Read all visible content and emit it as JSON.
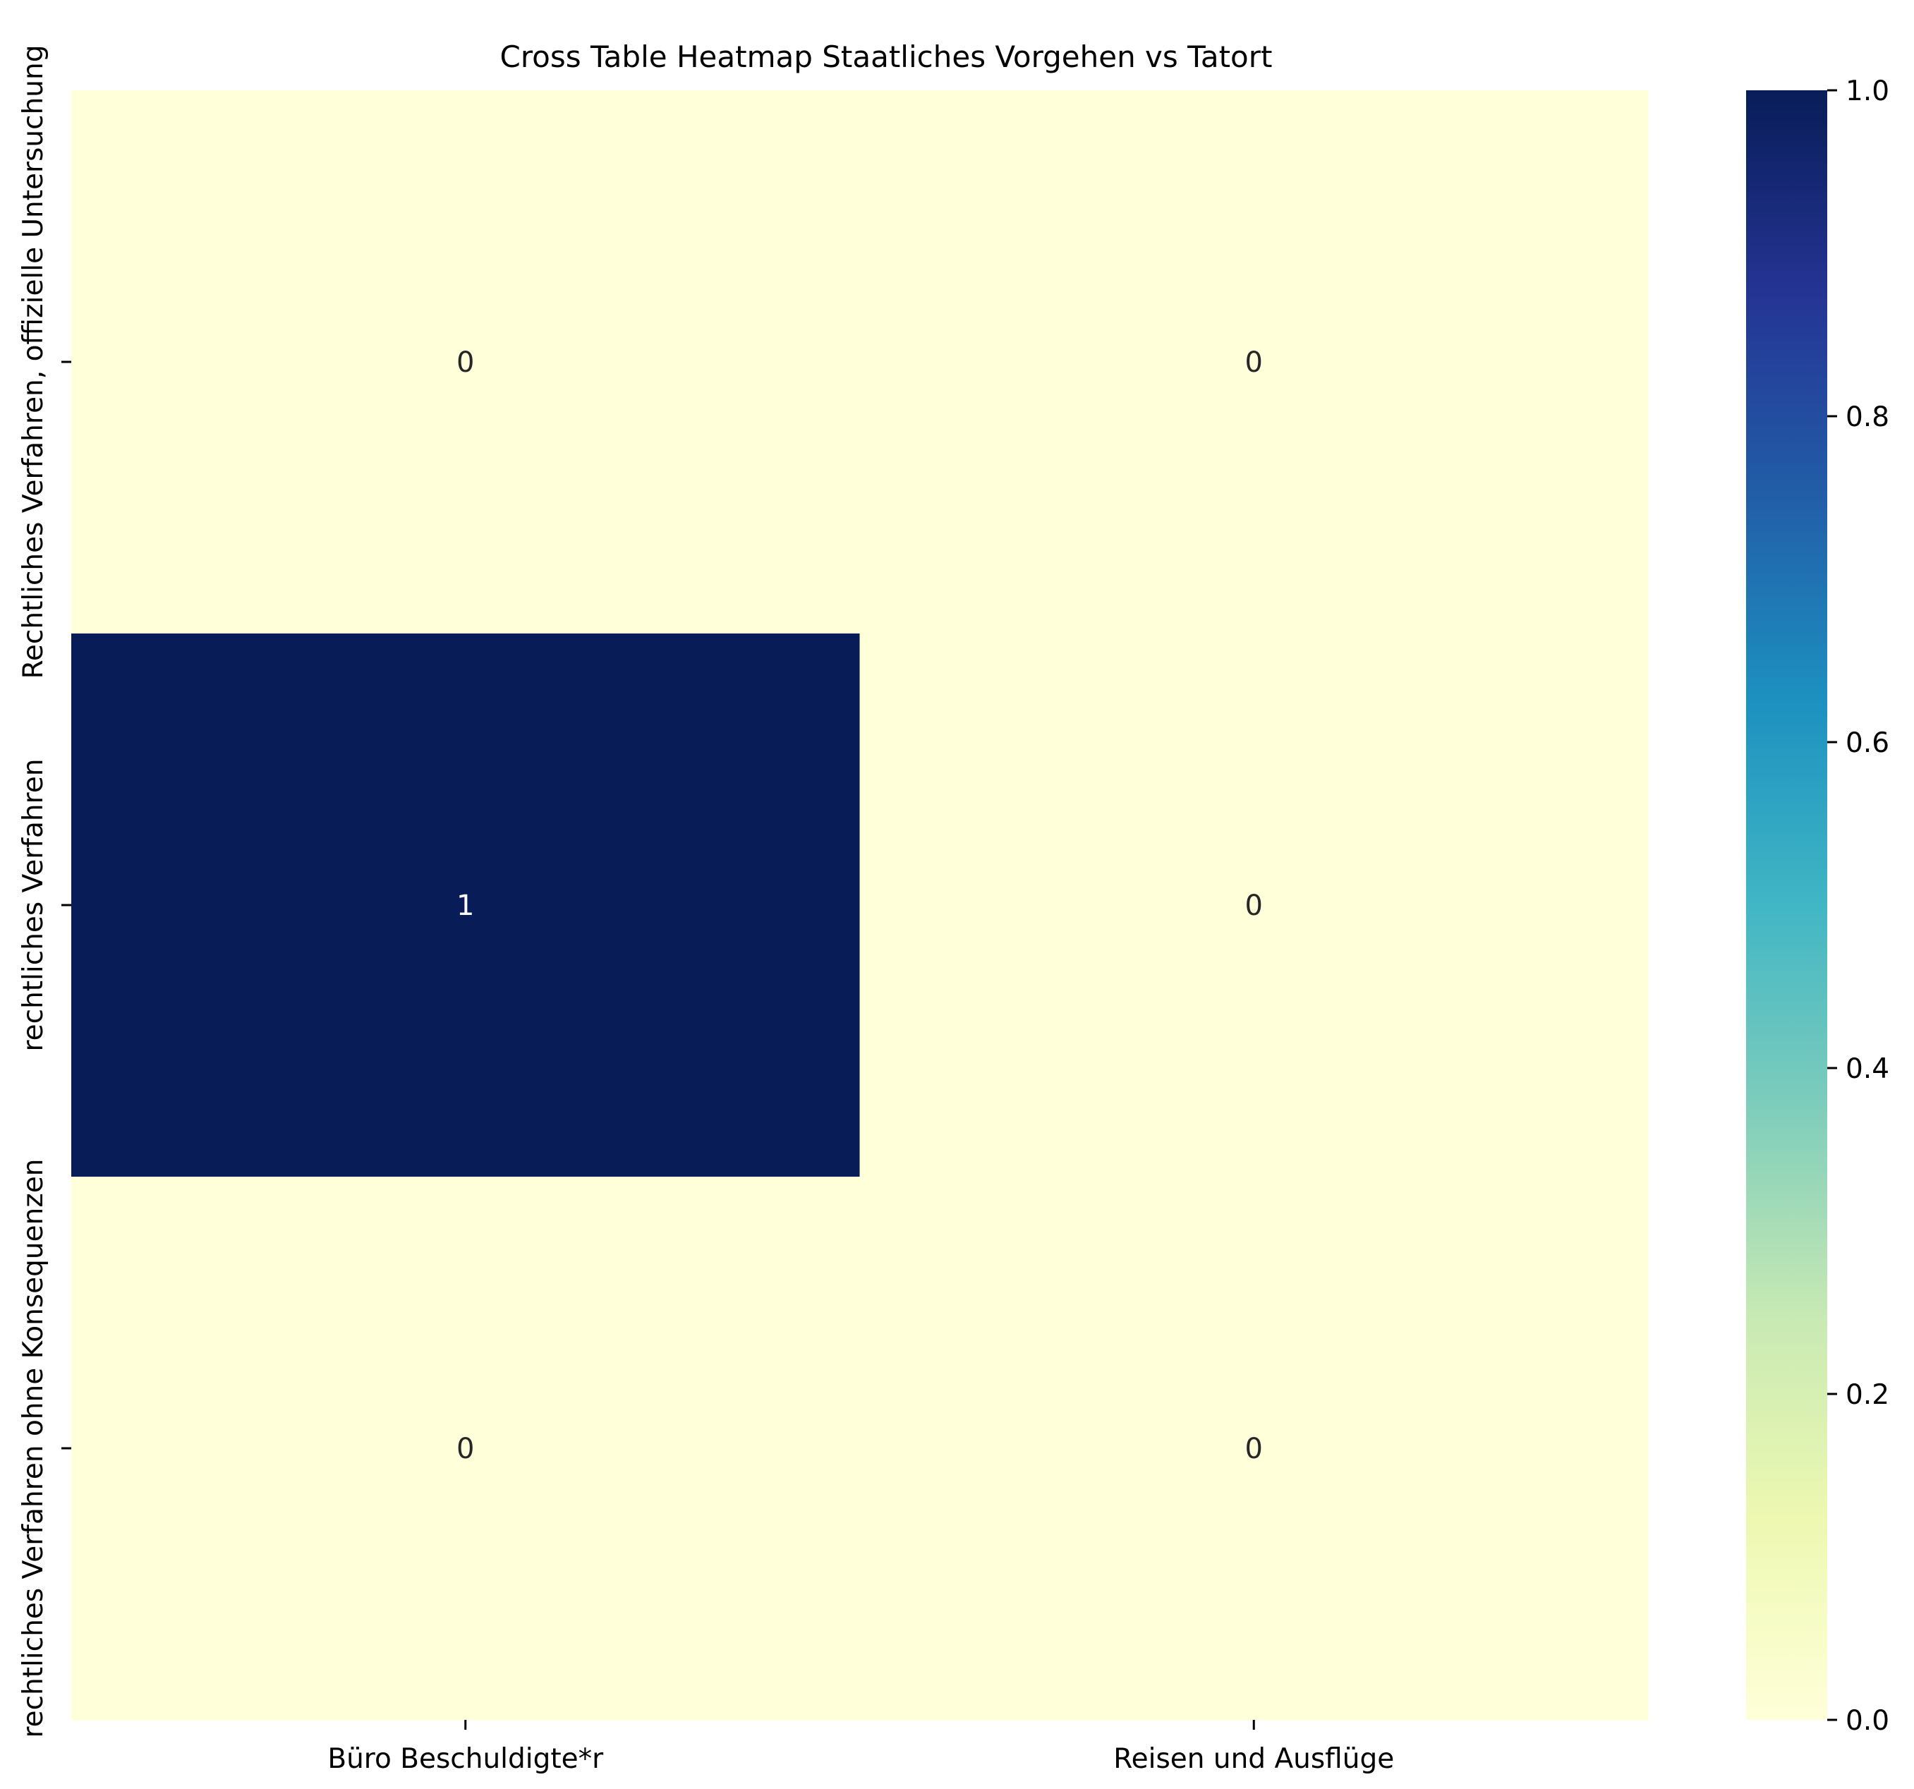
{
  "chart_data": {
    "type": "heatmap",
    "title": "Cross Table Heatmap Staatliches Vorgehen vs Tatort",
    "xlabel": "",
    "ylabel": "",
    "x_categories": [
      "Büro Beschuldigte*r",
      "Reisen und Ausflüge"
    ],
    "y_categories": [
      "Rechtliches Verfahren, offizielle Untersuchung",
      "rechtliches Verfahren",
      "rechtliches Verfahren ohne Konsequenzen"
    ],
    "values": [
      [
        0,
        0
      ],
      [
        1,
        0
      ],
      [
        0,
        0
      ]
    ],
    "cell_labels": [
      [
        "0",
        "0"
      ],
      [
        "1",
        "0"
      ],
      [
        "0",
        "0"
      ]
    ],
    "colormap": "YlGnBu",
    "colorbar": {
      "range": [
        0,
        1
      ],
      "ticks": [
        0.0,
        0.2,
        0.4,
        0.6,
        0.8,
        1.0
      ],
      "tick_labels": [
        "0.0",
        "0.2",
        "0.4",
        "0.6",
        "0.8",
        "1.0"
      ],
      "stops": [
        "#ffffd9",
        "#edf8b1",
        "#c7e9b4",
        "#7fcdbb",
        "#41b6c4",
        "#1d91c0",
        "#225ea8",
        "#253494",
        "#081d58"
      ]
    },
    "colors": {
      "low": "#ffffd9",
      "high": "#081d58",
      "label_dark": "#262626",
      "label_light": "#ffffff"
    }
  }
}
